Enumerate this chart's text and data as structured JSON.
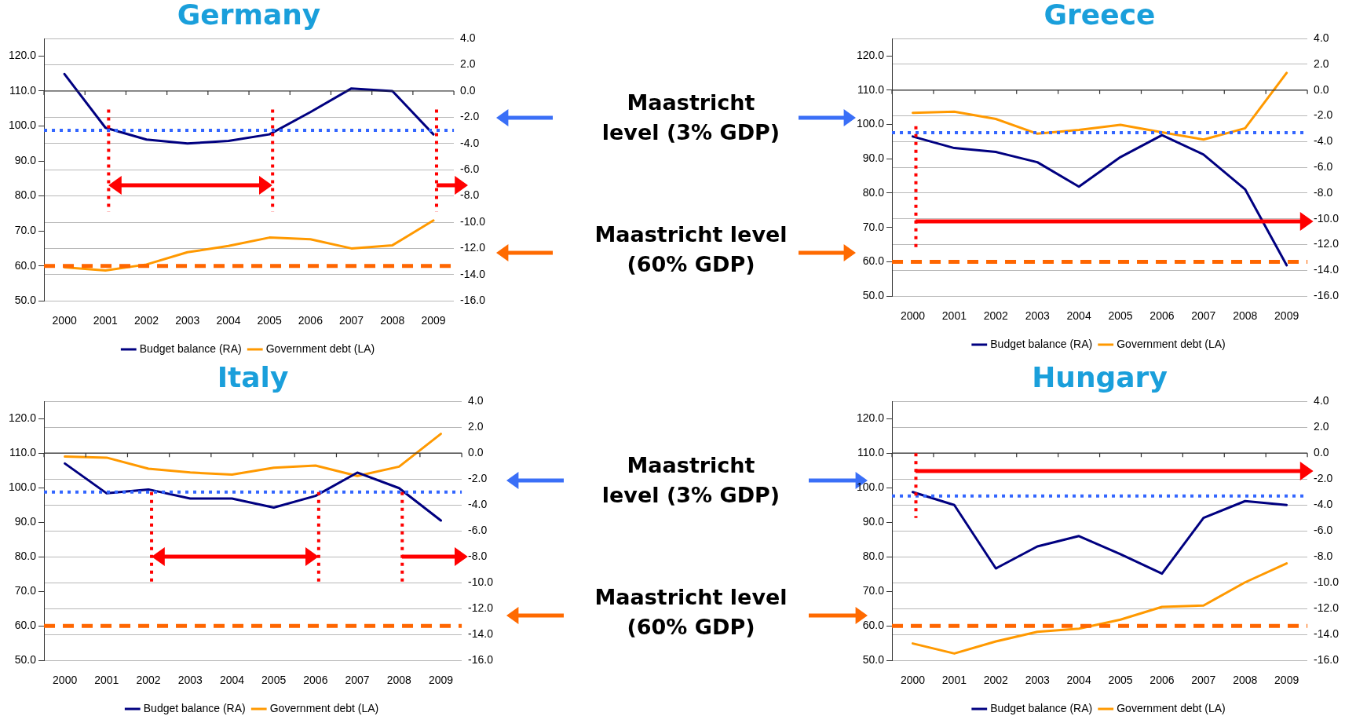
{
  "chart_data": [
    {
      "type": "line",
      "title": "Germany",
      "categories": [
        "2000",
        "2001",
        "2002",
        "2003",
        "2004",
        "2005",
        "2006",
        "2007",
        "2008",
        "2009"
      ],
      "series": [
        {
          "name": "Budget balance (RA)",
          "color": "#000080",
          "axis": "y2",
          "values": [
            1.3,
            -2.8,
            -3.7,
            -4.0,
            -3.8,
            -3.3,
            -1.6,
            0.2,
            0.0,
            -3.3
          ]
        },
        {
          "name": "Government debt (LA)",
          "color": "#ff9900",
          "values": [
            59.6,
            58.7,
            60.4,
            63.9,
            65.7,
            68.1,
            67.6,
            65.0,
            65.9,
            73.0
          ]
        }
      ],
      "ylim": [
        50,
        125
      ],
      "yticks": [
        {
          "value": 50,
          "label": "50.0"
        },
        {
          "value": 60,
          "label": "60.0"
        },
        {
          "value": 70,
          "label": "70.0"
        },
        {
          "value": 80,
          "label": "80.0"
        },
        {
          "value": 90,
          "label": "90.0"
        },
        {
          "value": 100,
          "label": "100.0"
        },
        {
          "value": 110,
          "label": "110.0"
        },
        {
          "value": 120,
          "label": "120.0"
        }
      ],
      "y2lim": [
        -16,
        4
      ],
      "y2ticks": [
        {
          "value": -16,
          "label": "-16.0"
        },
        {
          "value": -14,
          "label": "-14.0"
        },
        {
          "value": -12,
          "label": "-12.0"
        },
        {
          "value": -10,
          "label": "-10.0"
        },
        {
          "value": -8,
          "label": "-8.0"
        },
        {
          "value": -6,
          "label": "-6.0"
        },
        {
          "value": -4,
          "label": "-4.0"
        },
        {
          "value": -2,
          "label": "-2.0"
        },
        {
          "value": 0,
          "label": "0.0"
        },
        {
          "value": 2,
          "label": "2.0"
        },
        {
          "value": 4,
          "label": "4.0"
        }
      ],
      "ref_lines": [
        {
          "axis": "y2",
          "value": -3,
          "color": "#3366ff",
          "line_style": "dotted"
        },
        {
          "axis": "y",
          "value": 60,
          "color": "#ff6600",
          "line_style": "dashed"
        },
        {
          "axis": "x",
          "value": "2001",
          "color": "#ff0000",
          "line_style": "dotted"
        },
        {
          "axis": "x",
          "value": "2005",
          "color": "#ff0000",
          "line_style": "dotted"
        },
        {
          "axis": "x",
          "value": "2009",
          "color": "#ff0000",
          "line_style": "dotted"
        }
      ],
      "grid": true,
      "legend": "bottom",
      "line_style": "solid"
    },
    {
      "type": "other",
      "annotations": [
        "Maastricht level (3% GDP)",
        "Maastricht level (60% GDP)"
      ]
    },
    {
      "type": "line",
      "title": "Greece",
      "categories": [
        "2000",
        "2001",
        "2002",
        "2003",
        "2004",
        "2005",
        "2006",
        "2007",
        "2008",
        "2009"
      ],
      "series": [
        {
          "name": "Budget balance (RA)",
          "color": "#000080",
          "axis": "y2",
          "values": [
            -3.6,
            -4.5,
            -4.8,
            -5.6,
            -7.5,
            -5.2,
            -3.5,
            -5.0,
            -7.7,
            -13.6
          ]
        },
        {
          "name": "Government debt (LA)",
          "color": "#ff9900",
          "values": [
            103.4,
            103.7,
            101.6,
            97.3,
            98.4,
            99.9,
            97.7,
            95.6,
            98.9,
            115.0
          ]
        }
      ],
      "ylim": [
        50,
        125
      ],
      "yticks": [
        {
          "value": 50,
          "label": "50.0"
        },
        {
          "value": 60,
          "label": "60.0"
        },
        {
          "value": 70,
          "label": "70.0"
        },
        {
          "value": 80,
          "label": "80.0"
        },
        {
          "value": 90,
          "label": "90.0"
        },
        {
          "value": 100,
          "label": "100.0"
        },
        {
          "value": 110,
          "label": "110.0"
        },
        {
          "value": 120,
          "label": "120.0"
        }
      ],
      "y2lim": [
        -16,
        4
      ],
      "y2ticks": [
        {
          "value": -16,
          "label": "-16.0"
        },
        {
          "value": -14,
          "label": "-14.0"
        },
        {
          "value": -12,
          "label": "-12.0"
        },
        {
          "value": -10,
          "label": "-10.0"
        },
        {
          "value": -8,
          "label": "-8.0"
        },
        {
          "value": -6,
          "label": "-6.0"
        },
        {
          "value": -4,
          "label": "-4.0"
        },
        {
          "value": -2,
          "label": "-2.0"
        },
        {
          "value": 0,
          "label": "0.0"
        },
        {
          "value": 2,
          "label": "2.0"
        },
        {
          "value": 4,
          "label": "4.0"
        }
      ],
      "ref_lines": [
        {
          "axis": "y2",
          "value": -3.3,
          "color": "#3366ff",
          "line_style": "dotted"
        },
        {
          "axis": "y",
          "value": 60,
          "color": "#ff6600",
          "line_style": "dashed"
        },
        {
          "axis": "x",
          "value": "2000",
          "color": "#ff0000",
          "line_style": "dotted"
        }
      ],
      "grid": true,
      "legend": "bottom",
      "line_style": "solid"
    },
    {
      "type": "line",
      "title": "Italy",
      "categories": [
        "2000",
        "2001",
        "2002",
        "2003",
        "2004",
        "2005",
        "2006",
        "2007",
        "2008",
        "2009"
      ],
      "series": [
        {
          "name": "Budget balance (RA)",
          "color": "#000080",
          "axis": "y2",
          "values": [
            -0.8,
            -3.1,
            -2.8,
            -3.5,
            -3.5,
            -4.2,
            -3.3,
            -1.5,
            -2.7,
            -5.2
          ]
        },
        {
          "name": "Government debt (LA)",
          "color": "#ff9900",
          "values": [
            109.0,
            108.7,
            105.5,
            104.4,
            103.8,
            105.8,
            106.4,
            103.4,
            106.1,
            115.6
          ]
        }
      ],
      "ylim": [
        50,
        125
      ],
      "yticks": [
        {
          "value": 50,
          "label": "50.0"
        },
        {
          "value": 60,
          "label": "60.0"
        },
        {
          "value": 70,
          "label": "70.0"
        },
        {
          "value": 80,
          "label": "80.0"
        },
        {
          "value": 90,
          "label": "90.0"
        },
        {
          "value": 100,
          "label": "100.0"
        },
        {
          "value": 110,
          "label": "110.0"
        },
        {
          "value": 120,
          "label": "120.0"
        }
      ],
      "y2lim": [
        -16,
        4
      ],
      "y2ticks": [
        {
          "value": -16,
          "label": "-16.0"
        },
        {
          "value": -14,
          "label": "-14.0"
        },
        {
          "value": -12,
          "label": "-12.0"
        },
        {
          "value": -10,
          "label": "-10.0"
        },
        {
          "value": -8,
          "label": "-8.0"
        },
        {
          "value": -6,
          "label": "-6.0"
        },
        {
          "value": -4,
          "label": "-4.0"
        },
        {
          "value": -2,
          "label": "-2.0"
        },
        {
          "value": 0,
          "label": "0.0"
        },
        {
          "value": 2,
          "label": "2.0"
        },
        {
          "value": 4,
          "label": "4.0"
        }
      ],
      "ref_lines": [
        {
          "axis": "y2",
          "value": -3,
          "color": "#3366ff",
          "line_style": "dotted"
        },
        {
          "axis": "y",
          "value": 60,
          "color": "#ff6600",
          "line_style": "dashed"
        },
        {
          "axis": "x",
          "value": "2002",
          "color": "#ff0000",
          "line_style": "dotted"
        },
        {
          "axis": "x",
          "value": "2006",
          "color": "#ff0000",
          "line_style": "dotted"
        },
        {
          "axis": "x",
          "value": "2008",
          "color": "#ff0000",
          "line_style": "dotted"
        }
      ],
      "grid": true,
      "legend": "bottom",
      "line_style": "solid"
    },
    {
      "type": "other",
      "annotations": [
        "Maastricht level (3% GDP)",
        "Maastricht level (60% GDP)"
      ]
    },
    {
      "type": "line",
      "title": "Hungary",
      "categories": [
        "2000",
        "2001",
        "2002",
        "2003",
        "2004",
        "2005",
        "2006",
        "2007",
        "2008",
        "2009"
      ],
      "series": [
        {
          "name": "Budget balance (RA)",
          "color": "#000080",
          "axis": "y2",
          "values": [
            -3.0,
            -4.0,
            -8.9,
            -7.2,
            -6.4,
            -7.8,
            -9.3,
            -5.0,
            -3.7,
            -4.0
          ]
        },
        {
          "name": "Government debt (LA)",
          "color": "#ff9900",
          "values": [
            54.9,
            52.0,
            55.5,
            58.3,
            59.2,
            61.8,
            65.5,
            65.9,
            72.6,
            78.1
          ]
        }
      ],
      "ylim": [
        50,
        125
      ],
      "yticks": [
        {
          "value": 50,
          "label": "50.0"
        },
        {
          "value": 60,
          "label": "60.0"
        },
        {
          "value": 70,
          "label": "70.0"
        },
        {
          "value": 80,
          "label": "80.0"
        },
        {
          "value": 90,
          "label": "90.0"
        },
        {
          "value": 100,
          "label": "100.0"
        },
        {
          "value": 110,
          "label": "110.0"
        },
        {
          "value": 120,
          "label": "120.0"
        }
      ],
      "y2lim": [
        -16,
        4
      ],
      "y2ticks": [
        {
          "value": -16,
          "label": "-16.0"
        },
        {
          "value": -14,
          "label": "-14.0"
        },
        {
          "value": -12,
          "label": "-12.0"
        },
        {
          "value": -10,
          "label": "-10.0"
        },
        {
          "value": -8,
          "label": "-8.0"
        },
        {
          "value": -6,
          "label": "-6.0"
        },
        {
          "value": -4,
          "label": "-4.0"
        },
        {
          "value": -2,
          "label": "-2.0"
        },
        {
          "value": 0,
          "label": "0.0"
        },
        {
          "value": 2,
          "label": "2.0"
        },
        {
          "value": 4,
          "label": "4.0"
        }
      ],
      "ref_lines": [
        {
          "axis": "y2",
          "value": -3.3,
          "color": "#3366ff",
          "line_style": "dotted"
        },
        {
          "axis": "y",
          "value": 60,
          "color": "#ff6600",
          "line_style": "dashed"
        },
        {
          "axis": "x",
          "value": "2000",
          "color": "#ff0000",
          "line_style": "dotted"
        }
      ],
      "grid": true,
      "legend": "bottom",
      "line_style": "solid"
    }
  ]
}
